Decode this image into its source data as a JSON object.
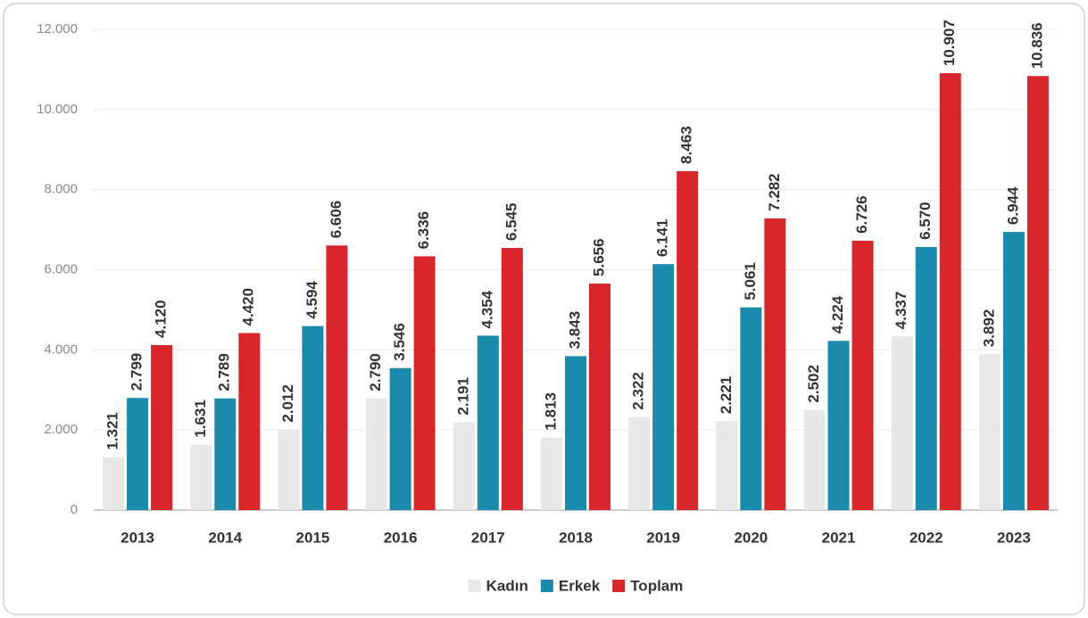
{
  "chart_data": {
    "type": "bar",
    "categories": [
      "2013",
      "2014",
      "2015",
      "2016",
      "2017",
      "2018",
      "2019",
      "2020",
      "2021",
      "2022",
      "2023"
    ],
    "series": [
      {
        "name": "Kadın",
        "color": "#e8e8e8",
        "values": [
          1321,
          1631,
          2012,
          2790,
          2191,
          1813,
          2322,
          2221,
          2502,
          4337,
          3892
        ],
        "value_labels": [
          "1.321",
          "1.631",
          "2.012",
          "2.790",
          "2.191",
          "1.813",
          "2.322",
          "2.221",
          "2.502",
          "4.337",
          "3.892"
        ]
      },
      {
        "name": "Erkek",
        "color": "#1a8aad",
        "values": [
          2799,
          2789,
          4594,
          3546,
          4354,
          3843,
          6141,
          5061,
          4224,
          6570,
          6944
        ],
        "value_labels": [
          "2.799",
          "2.789",
          "4.594",
          "3.546",
          "4.354",
          "3.843",
          "6.141",
          "5.061",
          "4.224",
          "6.570",
          "6.944"
        ]
      },
      {
        "name": "Toplam",
        "color": "#d9262b",
        "values": [
          4120,
          4420,
          6606,
          6336,
          6545,
          5656,
          8463,
          7282,
          6726,
          10907,
          10836
        ],
        "value_labels": [
          "4.120",
          "4.420",
          "6.606",
          "6.336",
          "6.545",
          "5.656",
          "8.463",
          "7.282",
          "6.726",
          "10.907",
          "10.836"
        ]
      }
    ],
    "ylim": [
      0,
      12000
    ],
    "yticks": [
      0,
      {
        "value": 2000,
        "label": "2.000"
      },
      {
        "value": 4000,
        "label": "4.000"
      },
      {
        "value": 6000,
        "label": "6.000"
      },
      {
        "value": 8000,
        "label": "8.000"
      },
      {
        "value": 10000,
        "label": "10.000"
      },
      {
        "value": 12000,
        "label": "12.000"
      }
    ],
    "grid": true,
    "legend": "bottom"
  }
}
